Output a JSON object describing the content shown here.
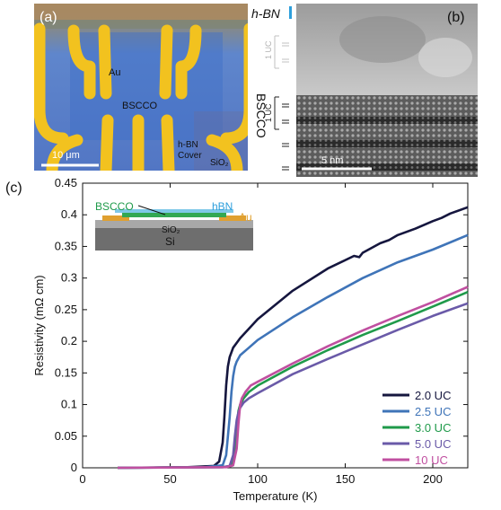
{
  "figure": {
    "panel_a": {
      "label": "(a)",
      "labels": {
        "au": "Au",
        "bscco": "BSCCO",
        "hbn_cover": [
          "h-BN",
          "Cover"
        ],
        "sio2": "SiO₂"
      },
      "scale_bar": "10 μm"
    },
    "panel_b": {
      "label": "(b)",
      "hbn": "h-BN",
      "one_uc_top": "1 UC",
      "one_uc_bottom": "1 UC",
      "bscco_vertical": "BSCCO",
      "scale_bar": "5 nm"
    },
    "panel_c": {
      "label": "(c)",
      "inset": {
        "bscco": "BSCCO",
        "hbn": "hBN",
        "au": "Au",
        "sio2": "SiO₂",
        "si": "Si"
      }
    }
  },
  "chart_data": {
    "type": "line",
    "title": "",
    "xlabel": "Temperature (K)",
    "ylabel": "Resistivity (mΩ cm)",
    "xlim": [
      0,
      220
    ],
    "ylim": [
      0,
      0.45
    ],
    "xticks": [
      0,
      50,
      100,
      150,
      200
    ],
    "yticks": [
      0,
      0.05,
      0.1,
      0.15,
      0.2,
      0.25,
      0.3,
      0.35,
      0.4,
      0.45
    ],
    "xtick_labels": [
      "0",
      "50",
      "100",
      "150",
      "200"
    ],
    "ytick_labels": [
      "0",
      "0.05",
      "0.1",
      "0.15",
      "0.2",
      "0.25",
      "0.3",
      "0.35",
      "0.4",
      "0.45"
    ],
    "grid": false,
    "legend_position": "bottom-right",
    "series": [
      {
        "name": "2.0 UC",
        "color": "#15163e",
        "x": [
          20,
          60,
          75,
          78,
          80,
          81,
          82,
          83,
          84,
          86,
          90,
          100,
          120,
          140,
          155,
          158,
          160,
          170,
          175,
          180,
          190,
          200,
          205,
          210,
          220
        ],
        "y": [
          0,
          0.001,
          0.003,
          0.01,
          0.04,
          0.08,
          0.13,
          0.16,
          0.175,
          0.19,
          0.205,
          0.235,
          0.28,
          0.315,
          0.335,
          0.333,
          0.34,
          0.355,
          0.36,
          0.368,
          0.378,
          0.39,
          0.395,
          0.402,
          0.412
        ]
      },
      {
        "name": "2.5 UC",
        "color": "#3f74b8",
        "x": [
          20,
          70,
          80,
          82,
          84,
          85,
          86,
          87,
          88,
          90,
          95,
          100,
          120,
          140,
          160,
          180,
          200,
          220
        ],
        "y": [
          0,
          0.001,
          0.004,
          0.02,
          0.08,
          0.12,
          0.145,
          0.16,
          0.168,
          0.178,
          0.19,
          0.202,
          0.238,
          0.27,
          0.3,
          0.325,
          0.345,
          0.368
        ]
      },
      {
        "name": "3.0 UC",
        "color": "#1f9a4a",
        "x": [
          20,
          80,
          85,
          87,
          88,
          89,
          90,
          92,
          95,
          100,
          120,
          140,
          160,
          180,
          200,
          220
        ],
        "y": [
          0,
          0.001,
          0.003,
          0.02,
          0.06,
          0.09,
          0.1,
          0.11,
          0.12,
          0.13,
          0.16,
          0.186,
          0.21,
          0.232,
          0.255,
          0.278
        ]
      },
      {
        "name": "5.0 UC",
        "color": "#6a5aa8",
        "x": [
          20,
          80,
          84,
          86,
          87,
          88,
          89,
          90,
          92,
          95,
          100,
          120,
          140,
          160,
          180,
          200,
          220
        ],
        "y": [
          0,
          0.001,
          0.003,
          0.02,
          0.05,
          0.075,
          0.088,
          0.095,
          0.103,
          0.11,
          0.118,
          0.148,
          0.172,
          0.195,
          0.218,
          0.24,
          0.26
        ]
      },
      {
        "name": "10 UC",
        "color": "#c04fa0",
        "x": [
          20,
          82,
          86,
          88,
          89,
          90,
          91,
          93,
          96,
          100,
          120,
          140,
          160,
          180,
          200,
          220
        ],
        "y": [
          0,
          0.001,
          0.004,
          0.03,
          0.07,
          0.1,
          0.11,
          0.12,
          0.13,
          0.136,
          0.165,
          0.192,
          0.217,
          0.24,
          0.262,
          0.286
        ]
      }
    ]
  }
}
